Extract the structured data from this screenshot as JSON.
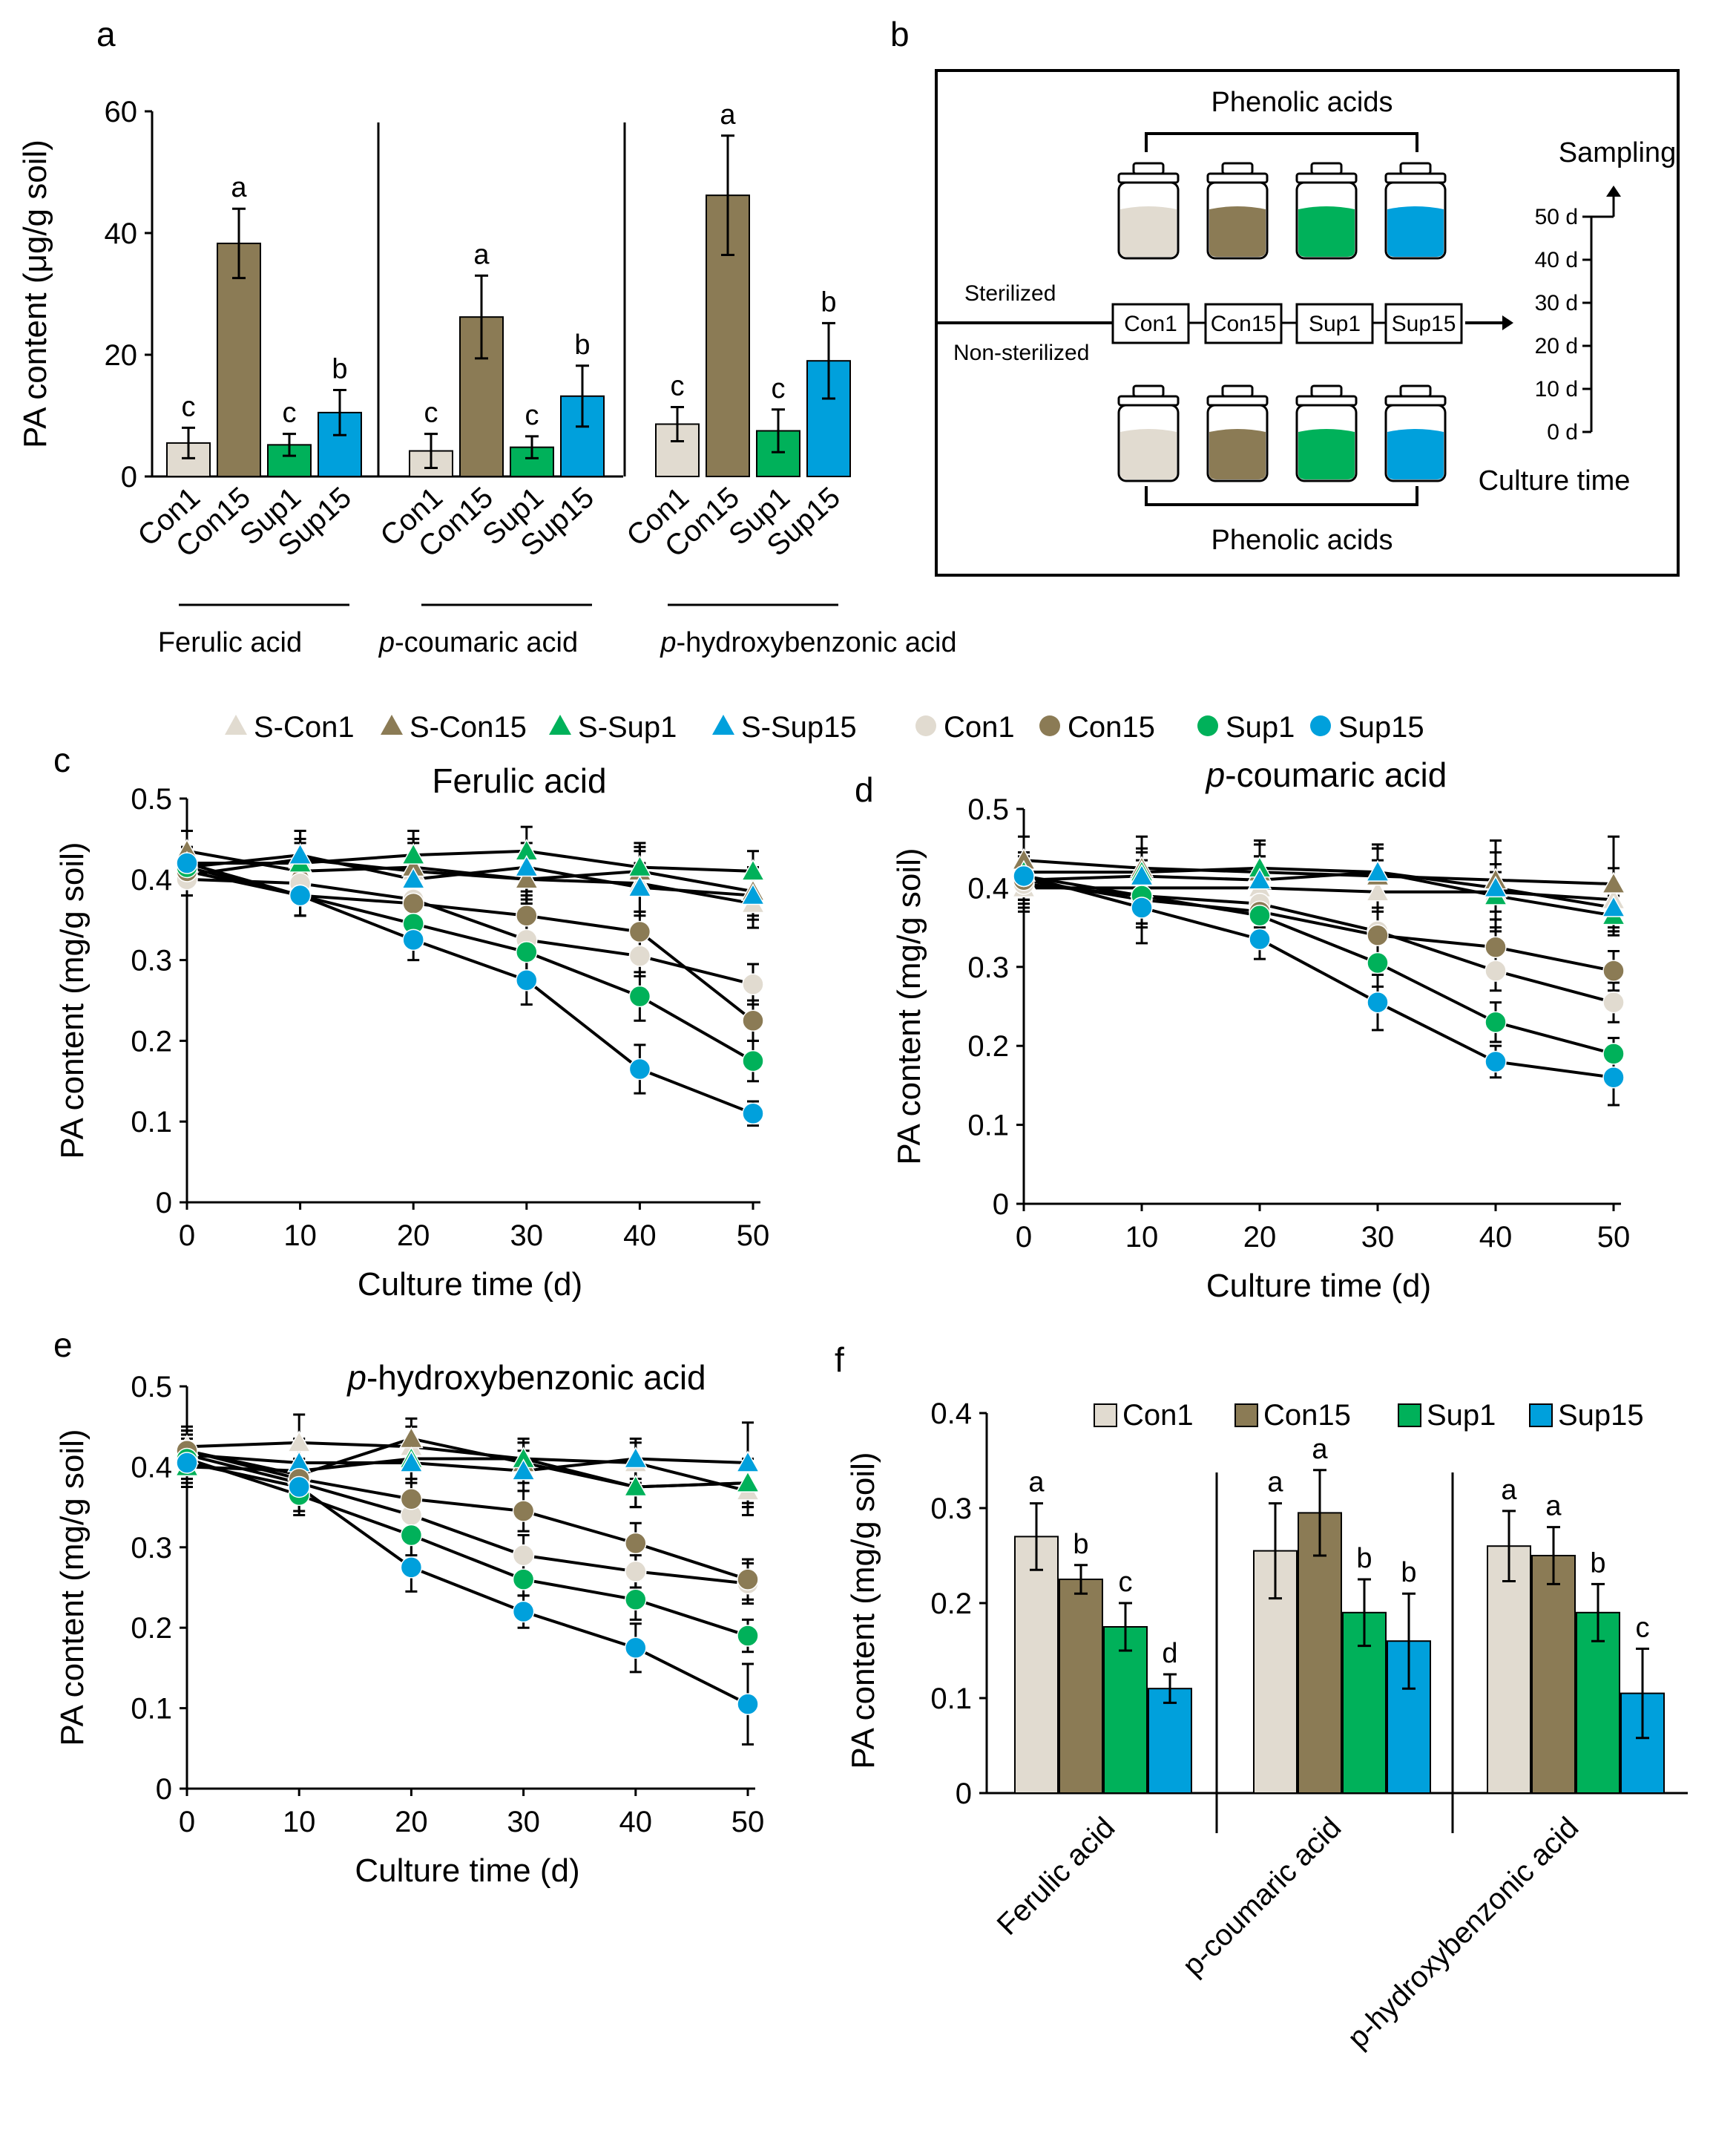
{
  "colors": {
    "Con1": "#e1dbd0",
    "Con15": "#8b7b55",
    "Sup1": "#00b15a",
    "Sup15": "#00a0dc",
    "axis": "#000000"
  },
  "chart_data": [
    {
      "id": "a",
      "panel_label": "a",
      "type": "bar",
      "ylabel": "PA content (μg/g soil)",
      "ylim": [
        0,
        60
      ],
      "yticks": [
        "0",
        "20",
        "40",
        "60"
      ],
      "groups": [
        {
          "label": "Ferulic acid",
          "label_prefix": "",
          "label_rest": "Ferulic acid",
          "bars": [
            {
              "cat": "Con1",
              "value": 5.5,
              "err": 2.5,
              "sig": "c"
            },
            {
              "cat": "Con15",
              "value": 38.3,
              "err": 5.7,
              "sig": "a"
            },
            {
              "cat": "Sup1",
              "value": 5.2,
              "err": 1.8,
              "sig": "c"
            },
            {
              "cat": "Sup15",
              "value": 10.5,
              "err": 3.7,
              "sig": "b"
            }
          ]
        },
        {
          "label": "p-coumaric acid",
          "label_prefix": "p",
          "label_rest": "-coumaric acid",
          "bars": [
            {
              "cat": "Con1",
              "value": 4.2,
              "err": 2.8,
              "sig": "c"
            },
            {
              "cat": "Con15",
              "value": 26.2,
              "err": 6.8,
              "sig": "a"
            },
            {
              "cat": "Sup1",
              "value": 4.8,
              "err": 1.8,
              "sig": "c"
            },
            {
              "cat": "Sup15",
              "value": 13.2,
              "err": 5.0,
              "sig": "b"
            }
          ]
        },
        {
          "label": "p-hydroxybenzonic acid",
          "label_prefix": "p",
          "label_rest": "-hydroxybenzonic acid",
          "bars": [
            {
              "cat": "Con1",
              "value": 8.6,
              "err": 2.8,
              "sig": "c"
            },
            {
              "cat": "Con15",
              "value": 46.2,
              "err": 9.8,
              "sig": "a"
            },
            {
              "cat": "Sup1",
              "value": 7.5,
              "err": 3.5,
              "sig": "c"
            },
            {
              "cat": "Sup15",
              "value": 19.0,
              "err": 6.2,
              "sig": "b"
            }
          ]
        }
      ]
    },
    {
      "id": "c",
      "panel_label": "c",
      "type": "line",
      "title": "Ferulic acid",
      "title_prefix": "",
      "title_rest": "Ferulic acid",
      "xlabel": "Culture time (d)",
      "ylabel": "PA content (mg/g soil)",
      "x": [
        0,
        10,
        20,
        30,
        40,
        50
      ],
      "xticks": [
        "0",
        "10",
        "20",
        "30",
        "40",
        "50"
      ],
      "ylim": [
        0,
        0.5
      ],
      "yticks": [
        "0",
        "0.1",
        "0.2",
        "0.3",
        "0.4",
        "0.5"
      ],
      "series": [
        {
          "name": "S-Con1",
          "values": [
            0.405,
            0.425,
            0.41,
            0.4,
            0.395,
            0.37
          ],
          "err": [
            0.025,
            0.035,
            0.04,
            0.03,
            0.04,
            0.03
          ]
        },
        {
          "name": "S-Con15",
          "values": [
            0.435,
            0.41,
            0.415,
            0.4,
            0.41,
            0.385
          ],
          "err": [
            0.025,
            0.035,
            0.03,
            0.025,
            0.03,
            0.03
          ]
        },
        {
          "name": "S-Sup1",
          "values": [
            0.42,
            0.42,
            0.43,
            0.435,
            0.415,
            0.41
          ],
          "err": [
            0.02,
            0.03,
            0.03,
            0.03,
            0.03,
            0.025
          ]
        },
        {
          "name": "S-Sup15",
          "values": [
            0.415,
            0.43,
            0.4,
            0.415,
            0.39,
            0.38
          ],
          "err": [
            0.02,
            0.03,
            0.03,
            0.03,
            0.03,
            0.03
          ]
        },
        {
          "name": "Con1",
          "values": [
            0.4,
            0.395,
            0.375,
            0.325,
            0.305,
            0.27
          ],
          "err": [
            0.02,
            0.025,
            0.025,
            0.025,
            0.025,
            0.025
          ]
        },
        {
          "name": "Con15",
          "values": [
            0.41,
            0.38,
            0.37,
            0.355,
            0.335,
            0.225
          ],
          "err": [
            0.02,
            0.025,
            0.025,
            0.025,
            0.025,
            0.025
          ]
        },
        {
          "name": "Sup1",
          "values": [
            0.415,
            0.38,
            0.345,
            0.31,
            0.255,
            0.175
          ],
          "err": [
            0.02,
            0.025,
            0.025,
            0.025,
            0.03,
            0.025
          ]
        },
        {
          "name": "Sup15",
          "values": [
            0.42,
            0.38,
            0.325,
            0.275,
            0.165,
            0.11
          ],
          "err": [
            0.02,
            0.025,
            0.025,
            0.03,
            0.03,
            0.015
          ]
        }
      ]
    },
    {
      "id": "d",
      "panel_label": "d",
      "type": "line",
      "title": "p-coumaric acid",
      "title_prefix": "p",
      "title_rest": "-coumaric acid",
      "xlabel": "Culture time (d)",
      "ylabel": "PA content (mg/g soil)",
      "x": [
        0,
        10,
        20,
        30,
        40,
        50
      ],
      "xticks": [
        "0",
        "10",
        "20",
        "30",
        "40",
        "50"
      ],
      "ylim": [
        0,
        0.5
      ],
      "yticks": [
        "0",
        "0.1",
        "0.2",
        "0.3",
        "0.4",
        "0.5"
      ],
      "series": [
        {
          "name": "S-Con1",
          "values": [
            0.4,
            0.4,
            0.4,
            0.395,
            0.395,
            0.385
          ],
          "err": [
            0.03,
            0.035,
            0.04,
            0.04,
            0.05,
            0.04
          ]
        },
        {
          "name": "S-Con15",
          "values": [
            0.435,
            0.425,
            0.42,
            0.415,
            0.41,
            0.405
          ],
          "err": [
            0.03,
            0.04,
            0.04,
            0.04,
            0.05,
            0.06
          ]
        },
        {
          "name": "S-Sup1",
          "values": [
            0.42,
            0.42,
            0.425,
            0.42,
            0.39,
            0.365
          ],
          "err": [
            0.025,
            0.03,
            0.03,
            0.03,
            0.03,
            0.025
          ]
        },
        {
          "name": "S-Sup15",
          "values": [
            0.41,
            0.415,
            0.41,
            0.42,
            0.4,
            0.375
          ],
          "err": [
            0.025,
            0.03,
            0.03,
            0.03,
            0.03,
            0.025
          ]
        },
        {
          "name": "Con1",
          "values": [
            0.405,
            0.39,
            0.38,
            0.345,
            0.295,
            0.255
          ],
          "err": [
            0.03,
            0.035,
            0.03,
            0.03,
            0.025,
            0.025
          ]
        },
        {
          "name": "Con15",
          "values": [
            0.41,
            0.385,
            0.37,
            0.34,
            0.325,
            0.295
          ],
          "err": [
            0.03,
            0.035,
            0.03,
            0.03,
            0.025,
            0.025
          ]
        },
        {
          "name": "Sup1",
          "values": [
            0.415,
            0.39,
            0.365,
            0.305,
            0.23,
            0.19
          ],
          "err": [
            0.03,
            0.035,
            0.03,
            0.03,
            0.025,
            0.02
          ]
        },
        {
          "name": "Sup15",
          "values": [
            0.415,
            0.375,
            0.335,
            0.255,
            0.18,
            0.16
          ],
          "err": [
            0.03,
            0.045,
            0.025,
            0.035,
            0.02,
            0.035
          ]
        }
      ]
    },
    {
      "id": "e",
      "panel_label": "e",
      "type": "line",
      "title": "p-hydroxybenzonic acid",
      "title_prefix": "p",
      "title_rest": "-hydroxybenzonic acid",
      "xlabel": "Culture time (d)",
      "ylabel": "PA content (mg/g soil)",
      "x": [
        0,
        10,
        20,
        30,
        40,
        50
      ],
      "xticks": [
        "0",
        "10",
        "20",
        "30",
        "40",
        "50"
      ],
      "ylim": [
        0,
        0.5
      ],
      "yticks": [
        "0",
        "0.1",
        "0.2",
        "0.3",
        "0.4",
        "0.5"
      ],
      "series": [
        {
          "name": "S-Con1",
          "values": [
            0.425,
            0.43,
            0.425,
            0.41,
            0.405,
            0.37
          ],
          "err": [
            0.025,
            0.035,
            0.025,
            0.02,
            0.025,
            0.03
          ]
        },
        {
          "name": "S-Con15",
          "values": [
            0.42,
            0.39,
            0.435,
            0.405,
            0.375,
            0.38
          ],
          "err": [
            0.025,
            0.03,
            0.025,
            0.025,
            0.025,
            0.03
          ]
        },
        {
          "name": "S-Sup1",
          "values": [
            0.4,
            0.395,
            0.41,
            0.41,
            0.375,
            0.38
          ],
          "err": [
            0.025,
            0.03,
            0.025,
            0.025,
            0.025,
            0.03
          ]
        },
        {
          "name": "S-Sup15",
          "values": [
            0.415,
            0.405,
            0.405,
            0.395,
            0.41,
            0.405
          ],
          "err": [
            0.025,
            0.03,
            0.025,
            0.025,
            0.025,
            0.05
          ]
        },
        {
          "name": "Con1",
          "values": [
            0.415,
            0.38,
            0.34,
            0.29,
            0.27,
            0.255
          ],
          "err": [
            0.025,
            0.025,
            0.025,
            0.025,
            0.02,
            0.025
          ]
        },
        {
          "name": "Con15",
          "values": [
            0.42,
            0.385,
            0.36,
            0.345,
            0.305,
            0.26
          ],
          "err": [
            0.025,
            0.025,
            0.025,
            0.025,
            0.025,
            0.025
          ]
        },
        {
          "name": "Sup1",
          "values": [
            0.41,
            0.365,
            0.315,
            0.26,
            0.235,
            0.19
          ],
          "err": [
            0.025,
            0.025,
            0.025,
            0.02,
            0.025,
            0.02
          ]
        },
        {
          "name": "Sup15",
          "values": [
            0.405,
            0.375,
            0.275,
            0.22,
            0.175,
            0.105
          ],
          "err": [
            0.025,
            0.03,
            0.03,
            0.02,
            0.03,
            0.05
          ]
        }
      ]
    },
    {
      "id": "f",
      "panel_label": "f",
      "type": "bar",
      "ylabel": "PA content (mg/g soil)",
      "ylim": [
        0,
        0.4
      ],
      "yticks": [
        "0",
        "0.1",
        "0.2",
        "0.3",
        "0.4"
      ],
      "legend": [
        "Con1",
        "Con15",
        "Sup1",
        "Sup15"
      ],
      "groups": [
        {
          "label": "Ferulic acid",
          "bars": [
            {
              "cat": "Con1",
              "value": 0.27,
              "err": 0.035,
              "sig": "a"
            },
            {
              "cat": "Con15",
              "value": 0.225,
              "err": 0.015,
              "sig": "b"
            },
            {
              "cat": "Sup1",
              "value": 0.175,
              "err": 0.025,
              "sig": "c"
            },
            {
              "cat": "Sup15",
              "value": 0.11,
              "err": 0.015,
              "sig": "d"
            }
          ]
        },
        {
          "label": "p-coumaric acid",
          "bars": [
            {
              "cat": "Con1",
              "value": 0.255,
              "err": 0.05,
              "sig": "a"
            },
            {
              "cat": "Con15",
              "value": 0.295,
              "err": 0.045,
              "sig": "a"
            },
            {
              "cat": "Sup1",
              "value": 0.19,
              "err": 0.035,
              "sig": "b"
            },
            {
              "cat": "Sup15",
              "value": 0.16,
              "err": 0.05,
              "sig": "b"
            }
          ]
        },
        {
          "label": "p-hydroxybenzonic acid",
          "bars": [
            {
              "cat": "Con1",
              "value": 0.26,
              "err": 0.037,
              "sig": "a"
            },
            {
              "cat": "Con15",
              "value": 0.25,
              "err": 0.03,
              "sig": "a"
            },
            {
              "cat": "Sup1",
              "value": 0.19,
              "err": 0.03,
              "sig": "b"
            },
            {
              "cat": "Sup15",
              "value": 0.105,
              "err": 0.047,
              "sig": "c"
            }
          ]
        }
      ]
    }
  ],
  "line_legend": [
    "S-Con1",
    "S-Con15",
    "S-Sup1",
    "S-Sup15",
    "Con1",
    "Con15",
    "Sup1",
    "Sup15"
  ],
  "diagram": {
    "panel_label": "b",
    "top_label": "Phenolic acids",
    "bottom_label": "Phenolic acids",
    "sterilized": "Sterilized",
    "non_sterilized": "Non-sterilized",
    "boxes": [
      "Con1",
      "Con15",
      "Sup1",
      "Sup15"
    ],
    "timeline": [
      "0 d",
      "10 d",
      "20 d",
      "30 d",
      "40 d",
      "50 d"
    ],
    "sampling": "Sampling",
    "culture_time": "Culture time"
  }
}
